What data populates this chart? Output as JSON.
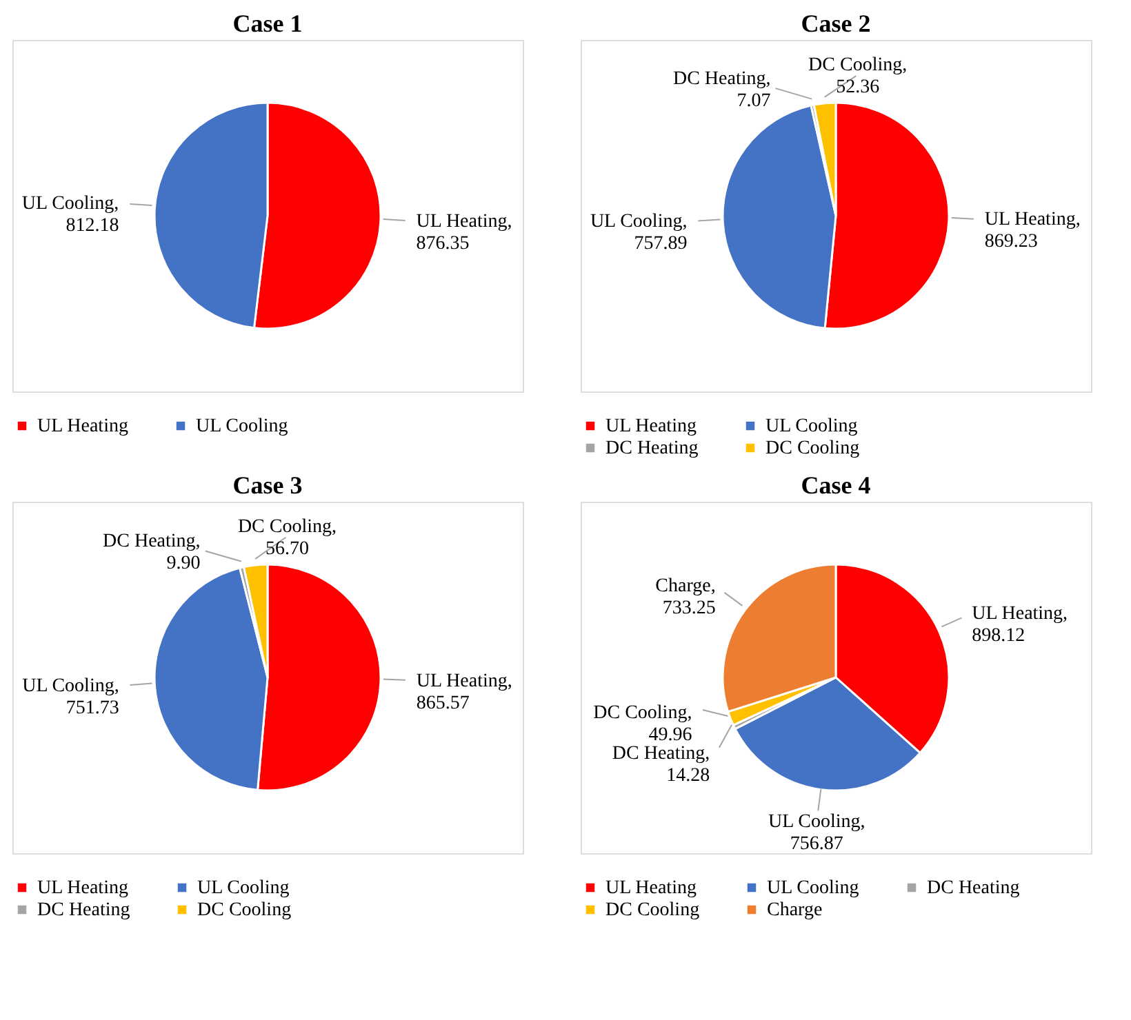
{
  "chart_data": [
    {
      "type": "pie",
      "title": "Case 1",
      "categories": [
        "UL Heating",
        "UL Cooling"
      ],
      "values": [
        876.35,
        812.18
      ],
      "value_labels": [
        "UL Heating, 876.35",
        "UL Cooling, 812.18"
      ],
      "colors": [
        "#ff0000",
        "#4472c4"
      ],
      "legend": "bottom"
    },
    {
      "type": "pie",
      "title": "Case 2",
      "categories": [
        "UL Heating",
        "UL Cooling",
        "DC Heating",
        "DC Cooling"
      ],
      "values": [
        869.23,
        757.89,
        7.07,
        52.36
      ],
      "value_labels": [
        "UL Heating, 869.23",
        "UL Cooling, 757.89",
        "DC Heating, 7.07",
        "DC Cooling, 52.36"
      ],
      "colors": [
        "#ff0000",
        "#4472c4",
        "#a5a5a5",
        "#ffc000"
      ],
      "legend": "bottom"
    },
    {
      "type": "pie",
      "title": "Case 3",
      "categories": [
        "UL Heating",
        "UL Cooling",
        "DC Heating",
        "DC Cooling"
      ],
      "values": [
        865.57,
        751.73,
        9.9,
        56.7
      ],
      "value_labels": [
        "UL Heating, 865.57",
        "UL Cooling, 751.73",
        "DC Heating, 9.90",
        "DC Cooling, 56.70"
      ],
      "colors": [
        "#ff0000",
        "#4472c4",
        "#a5a5a5",
        "#ffc000"
      ],
      "legend": "bottom"
    },
    {
      "type": "pie",
      "title": "Case 4",
      "categories": [
        "UL Heating",
        "UL Cooling",
        "DC Heating",
        "DC Cooling",
        "Charge"
      ],
      "values": [
        898.12,
        756.87,
        14.28,
        49.96,
        733.25
      ],
      "value_labels": [
        "UL Heating, 898.12",
        "UL Cooling, 756.87",
        "DC Heating, 14.28",
        "DC Cooling, 49.96",
        "Charge, 733.25"
      ],
      "colors": [
        "#ff0000",
        "#4472c4",
        "#a5a5a5",
        "#ffc000",
        "#ed7d31"
      ],
      "legend": "bottom"
    }
  ]
}
